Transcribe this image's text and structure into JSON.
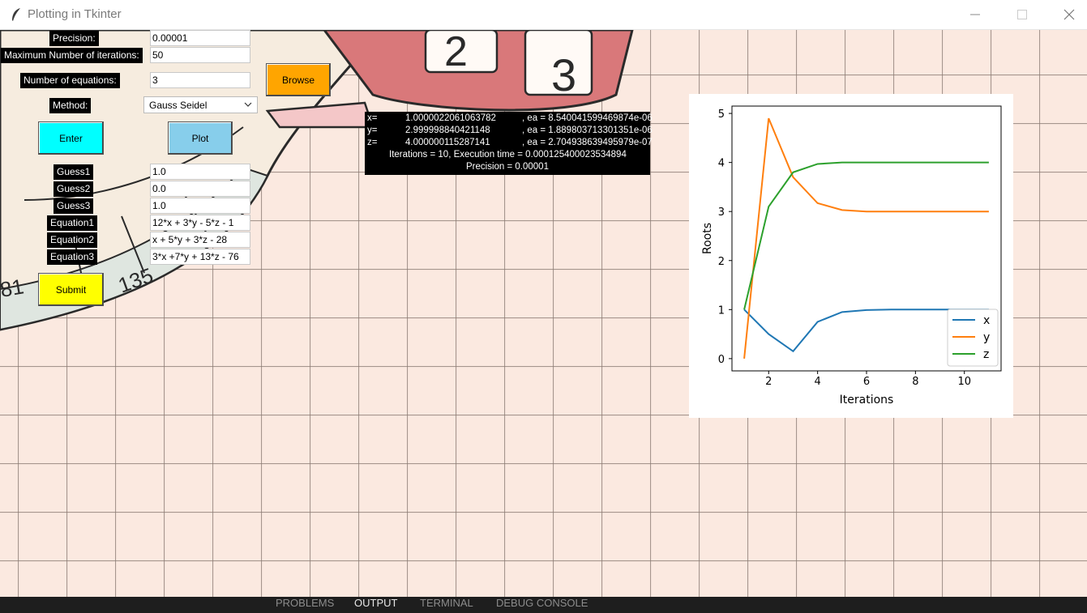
{
  "window": {
    "title": "Plotting in Tkinter",
    "icons": {
      "app": "feather-icon",
      "minimize": "minimize-icon",
      "maximize": "maximize-icon",
      "close": "close-icon"
    }
  },
  "form": {
    "precision": {
      "label": "Precision:",
      "value": "0.00001"
    },
    "max_iterations": {
      "label": "Maximum Number of iterations:",
      "value": "50"
    },
    "num_equations": {
      "label": "Number of equations:",
      "value": "3"
    },
    "method": {
      "label": "Method:",
      "selected": "Gauss Seidel"
    },
    "buttons": {
      "browse": "Browse",
      "enter": "Enter",
      "plot": "Plot",
      "submit": "Submit"
    },
    "guesses": [
      {
        "label": "Guess1",
        "value": "1.0"
      },
      {
        "label": "Guess2",
        "value": "0.0"
      },
      {
        "label": "Guess3",
        "value": "1.0"
      }
    ],
    "equations": [
      {
        "label": "Equation1",
        "value": "12*x + 3*y - 5*z - 1"
      },
      {
        "label": "Equation2",
        "value": "x + 5*y + 3*z - 28"
      },
      {
        "label": "Equation3",
        "value": "3*x +7*y + 13*z - 76"
      }
    ]
  },
  "result": {
    "rows": [
      {
        "name": "x=",
        "value": "1.0000022061063782",
        "ea": ", ea = 8.540041599469874e-06"
      },
      {
        "name": "y=",
        "value": "2.999998840421148",
        "ea": ", ea = 1.889803713301351e-06"
      },
      {
        "name": "z=",
        "value": "4.000000115287141",
        "ea": ", ea = 2.704938639495979e-07"
      }
    ],
    "summary": "Iterations = 10, Execution time = 0.000125400023534894",
    "precision_line": "Precision = 0.00001"
  },
  "chart_data": {
    "type": "line",
    "title": "",
    "xlabel": "Iterations",
    "ylabel": "Roots",
    "xlim": [
      0.5,
      11.5
    ],
    "ylim": [
      -0.25,
      5.15
    ],
    "xticks": [
      2,
      4,
      6,
      8,
      10
    ],
    "yticks": [
      0,
      1,
      2,
      3,
      4,
      5
    ],
    "x": [
      1,
      2,
      3,
      4,
      5,
      6,
      7,
      8,
      9,
      10,
      11
    ],
    "series": [
      {
        "name": "x",
        "color": "#1f77b4",
        "values": [
          1.0,
          0.5,
          0.15,
          0.75,
          0.95,
          0.99,
          1.0,
          1.0,
          1.0,
          1.0,
          1.0
        ]
      },
      {
        "name": "y",
        "color": "#ff7f0e",
        "values": [
          0.0,
          4.9,
          3.7,
          3.17,
          3.03,
          3.0,
          3.0,
          3.0,
          3.0,
          3.0,
          3.0
        ]
      },
      {
        "name": "z",
        "color": "#2ca02c",
        "values": [
          1.0,
          3.1,
          3.8,
          3.97,
          4.0,
          4.0,
          4.0,
          4.0,
          4.0,
          4.0,
          4.0
        ]
      }
    ],
    "legend_position": "lower right",
    "grid": false
  },
  "panel": {
    "tabs": [
      "PROBLEMS",
      "OUTPUT",
      "TERMINAL",
      "DEBUG CONSOLE"
    ],
    "active": "OUTPUT"
  },
  "colors": {
    "browse": "#ffa500",
    "enter": "#00ffff",
    "plot": "#87ceeb",
    "submit": "#ffff00"
  }
}
